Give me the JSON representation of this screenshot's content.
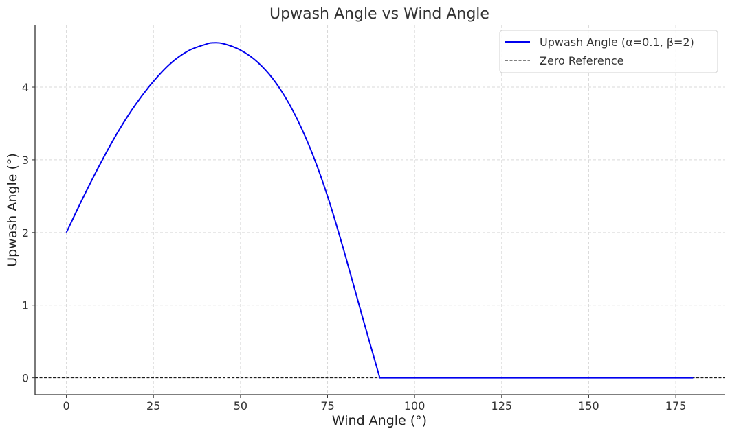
{
  "chart_data": {
    "type": "line",
    "title": "Upwash Angle vs Wind Angle",
    "xlabel": "Wind Angle (°)",
    "ylabel": "Upwash Angle (°)",
    "xlim": [
      -9,
      189
    ],
    "ylim": [
      -0.23,
      4.85
    ],
    "x_ticks": [
      0,
      25,
      50,
      75,
      100,
      125,
      150,
      175
    ],
    "y_ticks": [
      0,
      1,
      2,
      3,
      4
    ],
    "grid": true,
    "legend": {
      "placement": "top-right",
      "entries": [
        {
          "label": "Upwash Angle (α=0.1, β=2)",
          "color": "#0000ee",
          "style": "solid"
        },
        {
          "label": "Zero Reference",
          "color": "#000000",
          "style": "dashed"
        }
      ]
    },
    "series": [
      {
        "name": "Upwash Angle (α=0.1, β=2)",
        "color": "#0000ee",
        "x": [
          0,
          5,
          10,
          15,
          20,
          25,
          30,
          35,
          40,
          42,
          45,
          50,
          55,
          60,
          65,
          70,
          75,
          80,
          85,
          90,
          100,
          110,
          120,
          130,
          140,
          150,
          160,
          170,
          180
        ],
        "y": [
          2.0,
          2.5,
          2.97,
          3.4,
          3.77,
          4.08,
          4.33,
          4.5,
          4.59,
          4.61,
          4.6,
          4.51,
          4.34,
          4.07,
          3.68,
          3.16,
          2.5,
          1.7,
          0.84,
          0.0,
          0.0,
          0.0,
          0.0,
          0.0,
          0.0,
          0.0,
          0.0,
          0.0,
          0.0
        ]
      },
      {
        "name": "Zero Reference",
        "color": "#000000",
        "y_constant": 0
      }
    ]
  }
}
